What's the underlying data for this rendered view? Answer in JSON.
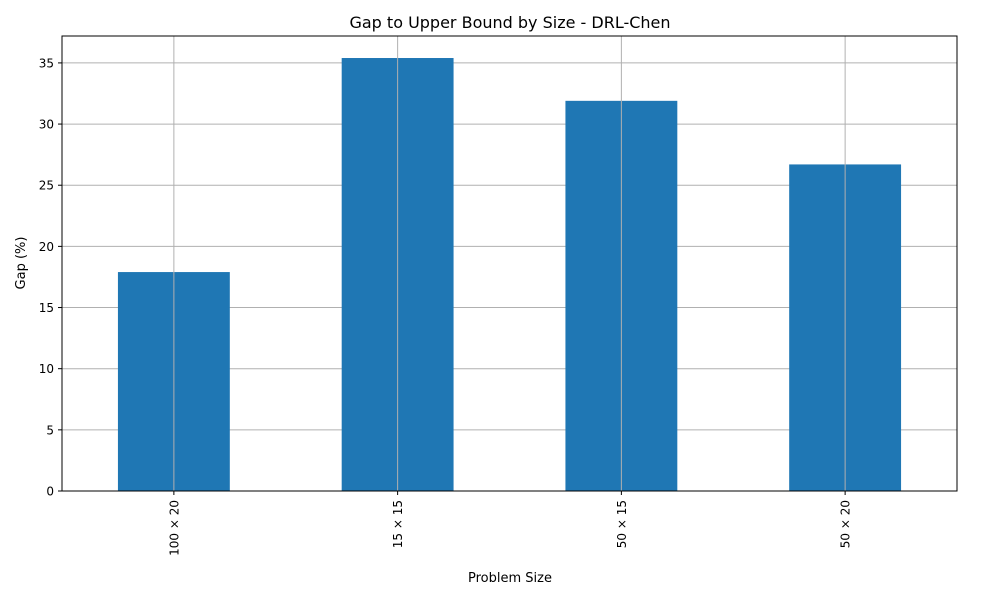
{
  "chart_data": {
    "type": "bar",
    "title": "Gap to Upper Bound by Size - DRL-Chen",
    "xlabel": "Problem Size",
    "ylabel": "Gap (%)",
    "categories": [
      "100 × 20",
      "15 × 15",
      "50 × 15",
      "50 × 20"
    ],
    "values": [
      17.9,
      35.4,
      31.9,
      26.7
    ],
    "ylim": [
      0,
      37.2
    ],
    "yticks": [
      0,
      5,
      10,
      15,
      20,
      25,
      30,
      35
    ],
    "grid": true,
    "legend": "none",
    "bar_color": "#1f77b4",
    "grid_color": "#b0b0b0"
  }
}
